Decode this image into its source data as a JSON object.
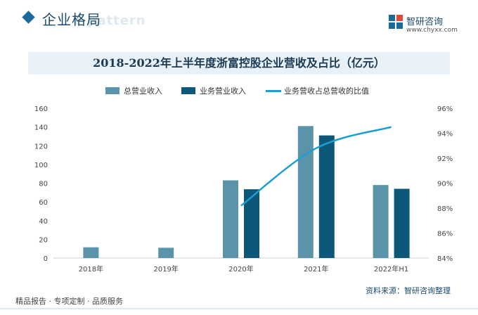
{
  "header": {
    "section_title": "企业格局",
    "section_watermark": "e pattern",
    "brand_name": "智研咨询",
    "brand_url": "www.chyxx.com"
  },
  "chart_title": "2018-2022年上半年度浙富控股企业营收及占比（亿元）",
  "legend": {
    "total": "总营业收入",
    "business": "业务营业收入",
    "ratio": "业务营收占总营收的比值"
  },
  "footer": {
    "left": "精品报告 · 专项定制 · 品质服务",
    "source": "资料来源：智研咨询整理"
  },
  "colors": {
    "total_bar": "#5b93aa",
    "business_bar": "#0d5878",
    "ratio_line": "#1a9fd4"
  },
  "chart_data": {
    "type": "bar",
    "title": "2018-2022年上半年度浙富控股企业营收及占比（亿元）",
    "categories": [
      "2018年",
      "2019年",
      "2020年",
      "2021年",
      "2022年H1"
    ],
    "series": [
      {
        "name": "总营业收入",
        "type": "bar",
        "values": [
          11.5,
          11,
          83,
          141,
          78
        ]
      },
      {
        "name": "业务营业收入",
        "type": "bar",
        "values": [
          null,
          null,
          73.5,
          131,
          74
        ]
      },
      {
        "name": "业务营收占总营收的比值",
        "type": "line",
        "axis": "right",
        "values": [
          null,
          null,
          88.2,
          92.8,
          94.5
        ]
      }
    ],
    "ylim": [
      0,
      160
    ],
    "y_ticks": [
      0,
      20,
      40,
      60,
      80,
      100,
      120,
      140,
      160
    ],
    "y2lim": [
      84,
      96
    ],
    "y2_ticks": [
      "84%",
      "86%",
      "88%",
      "90%",
      "92%",
      "94%",
      "96%"
    ],
    "grid": false,
    "legend_position": "top"
  }
}
